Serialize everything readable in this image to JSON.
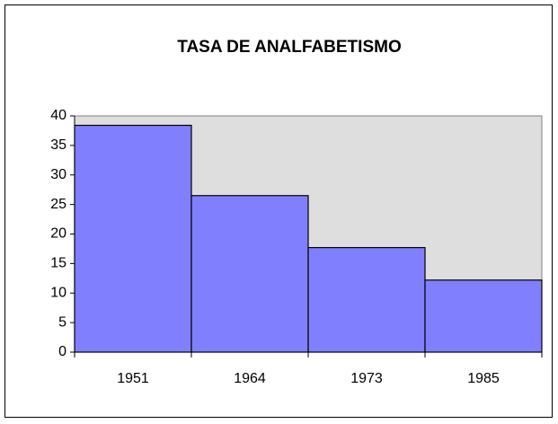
{
  "chart_data": {
    "type": "bar",
    "title": "TASA DE ANALFABETISMO",
    "categories": [
      "1951",
      "1964",
      "1973",
      "1985"
    ],
    "values": [
      38.4,
      26.5,
      17.7,
      12.2
    ],
    "color": "#8080ff",
    "ylim": [
      0,
      40
    ],
    "yticks": [
      0,
      5,
      10,
      15,
      20,
      25,
      30,
      35,
      40
    ],
    "grid": false
  }
}
